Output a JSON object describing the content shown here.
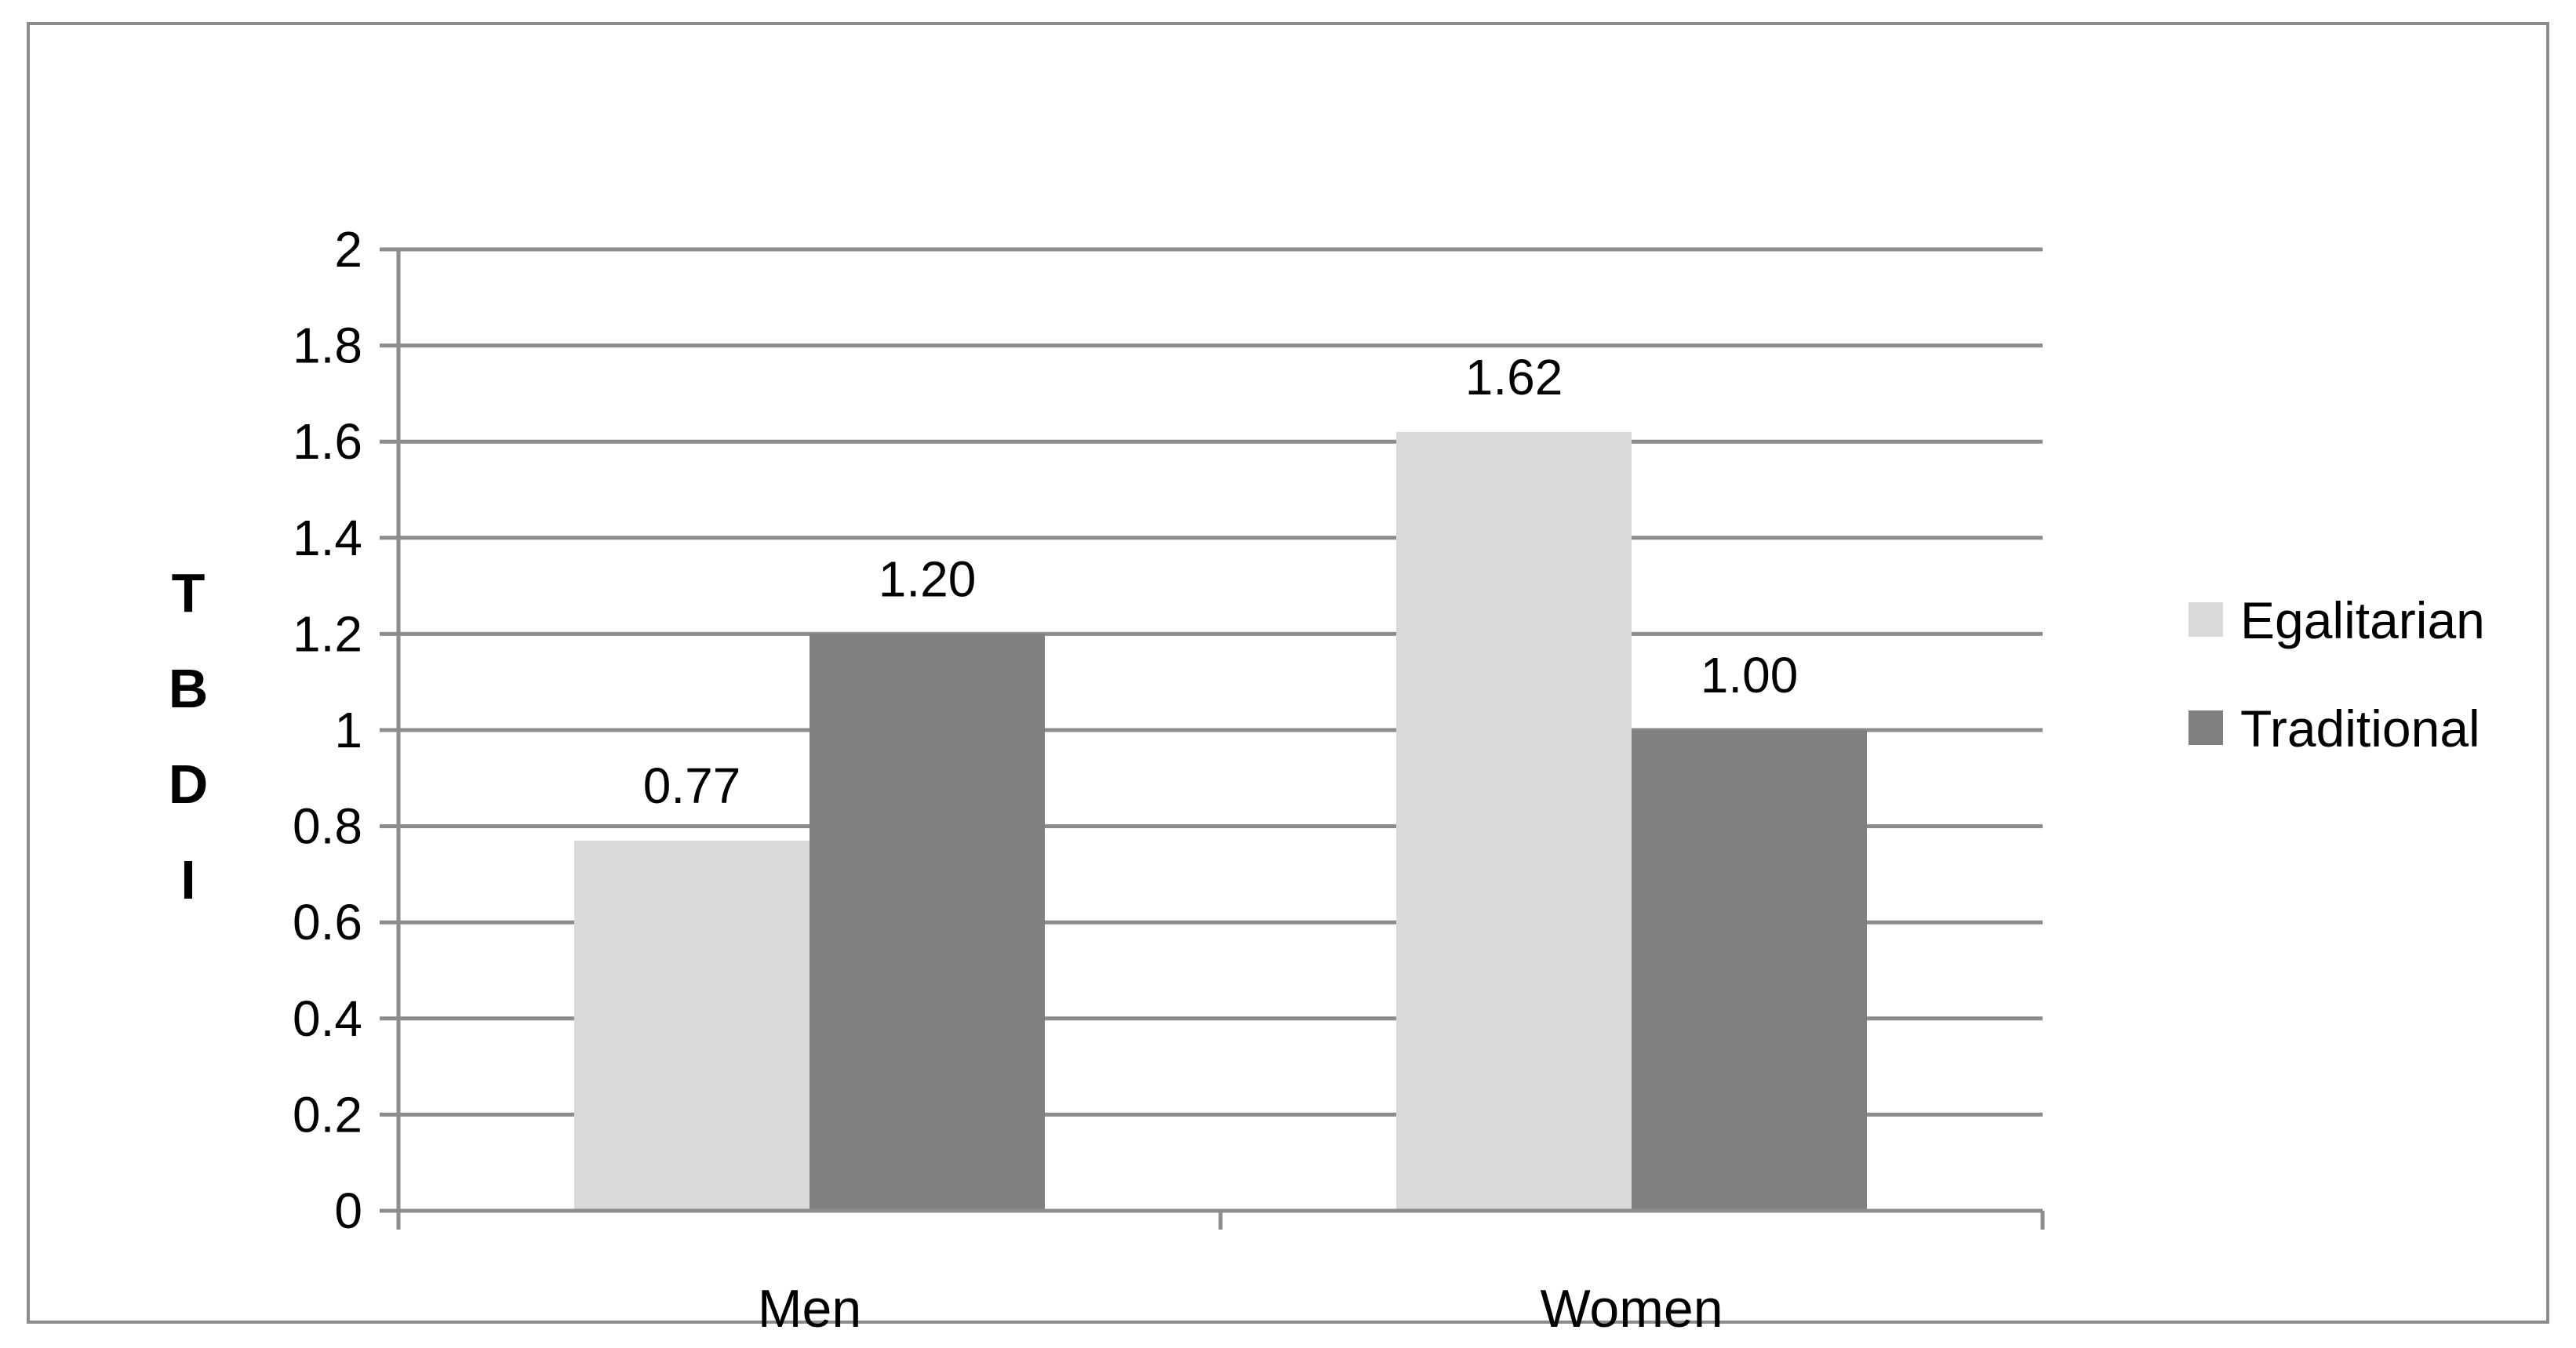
{
  "chart_data": {
    "type": "bar",
    "title": "",
    "xlabel": "",
    "ylabel": "TBDI",
    "categories": [
      "Men",
      "Women"
    ],
    "series": [
      {
        "name": "Egalitarian",
        "values": [
          0.77,
          1.62
        ],
        "labels": [
          "0.77",
          "1.62"
        ],
        "color": "#d9d9d9"
      },
      {
        "name": "Traditional",
        "values": [
          1.2,
          1.0
        ],
        "labels": [
          "1.20",
          "1.00"
        ],
        "color": "#808080"
      }
    ],
    "ylim": [
      0,
      2
    ],
    "yticks": [
      "0",
      "0.2",
      "0.4",
      "0.6",
      "0.8",
      "1",
      "1.2",
      "1.4",
      "1.6",
      "1.8",
      "2"
    ],
    "grid": true,
    "legend_position": "right"
  }
}
